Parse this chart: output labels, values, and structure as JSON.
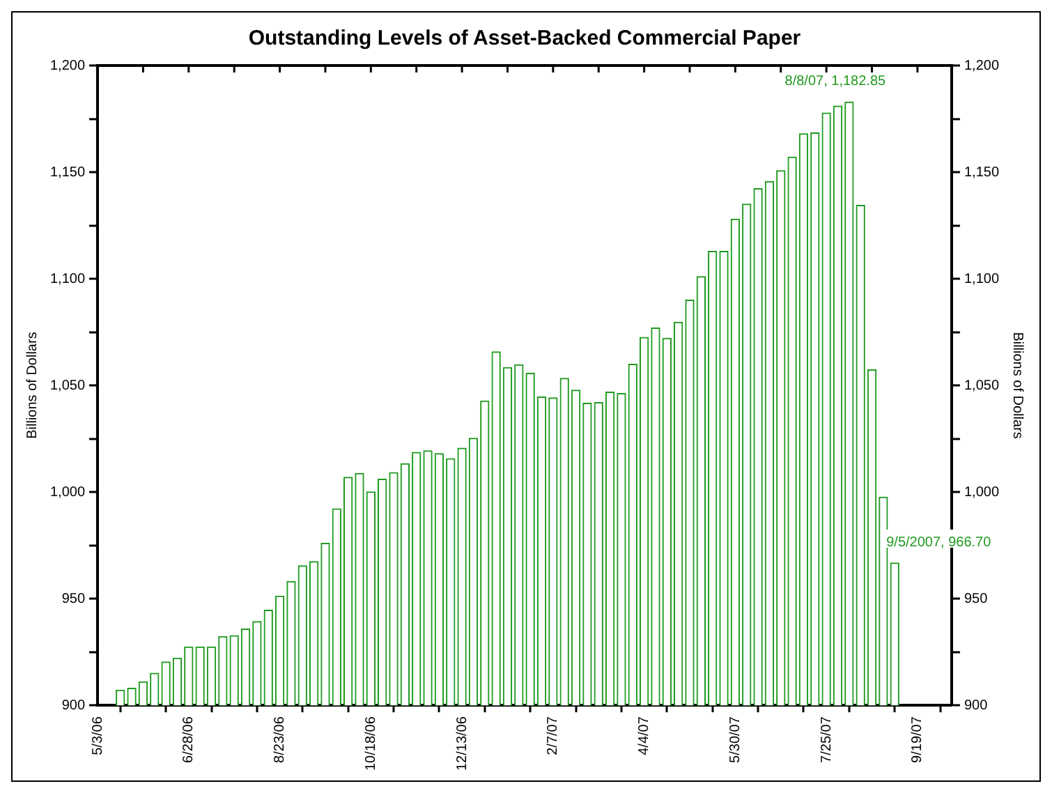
{
  "chart_data": {
    "type": "bar",
    "title": "Outstanding Levels of Asset-Backed Commercial Paper",
    "ylabel": "Billions of Dollars",
    "y2label": "Billions of Dollars",
    "x": [
      "2006-05-17",
      "2006-05-24",
      "2006-05-31",
      "2006-06-07",
      "2006-06-14",
      "2006-06-21",
      "2006-06-28",
      "2006-07-05",
      "2006-07-12",
      "2006-07-19",
      "2006-07-26",
      "2006-08-02",
      "2006-08-09",
      "2006-08-16",
      "2006-08-23",
      "2006-08-30",
      "2006-09-06",
      "2006-09-13",
      "2006-09-20",
      "2006-09-27",
      "2006-10-04",
      "2006-10-11",
      "2006-10-18",
      "2006-10-25",
      "2006-11-01",
      "2006-11-08",
      "2006-11-15",
      "2006-11-22",
      "2006-11-29",
      "2006-12-06",
      "2006-12-13",
      "2006-12-20",
      "2006-12-27",
      "2007-01-03",
      "2007-01-10",
      "2007-01-17",
      "2007-01-24",
      "2007-01-31",
      "2007-02-07",
      "2007-02-14",
      "2007-02-21",
      "2007-02-28",
      "2007-03-07",
      "2007-03-14",
      "2007-03-21",
      "2007-03-28",
      "2007-04-04",
      "2007-04-11",
      "2007-04-18",
      "2007-04-25",
      "2007-05-02",
      "2007-05-09",
      "2007-05-16",
      "2007-05-23",
      "2007-05-30",
      "2007-06-06",
      "2007-06-13",
      "2007-06-20",
      "2007-06-27",
      "2007-07-04",
      "2007-07-11",
      "2007-07-18",
      "2007-07-25",
      "2007-08-01",
      "2007-08-08",
      "2007-08-15",
      "2007-08-22",
      "2007-08-29",
      "2007-09-05"
    ],
    "values": [
      907.1,
      908.0,
      911.0,
      915.0,
      920.3,
      922.1,
      927.4,
      927.4,
      927.4,
      932.3,
      932.7,
      935.8,
      939.3,
      944.6,
      951.2,
      958.1,
      965.4,
      967.4,
      976.0,
      992.1,
      1006.9,
      1008.7,
      1000.1,
      1006.0,
      1009.1,
      1013.3,
      1018.6,
      1019.3,
      1018.0,
      1015.7,
      1020.6,
      1025.2,
      1042.7,
      1065.7,
      1058.4,
      1059.7,
      1055.7,
      1044.6,
      1044.2,
      1053.3,
      1047.8,
      1041.6,
      1042.0,
      1046.9,
      1046.2,
      1059.9,
      1072.5,
      1076.9,
      1072.1,
      1079.6,
      1090.0,
      1101.0,
      1112.9,
      1112.9,
      1128.0,
      1135.0,
      1142.3,
      1145.6,
      1150.7,
      1157.1,
      1168.0,
      1168.4,
      1177.7,
      1181.0,
      1182.85,
      1134.4,
      1057.3,
      997.6,
      966.7
    ],
    "color": "#1f9a1f",
    "xlim": [
      "2006-05-03",
      "2007-10-10"
    ],
    "xticks": [
      {
        "value": "2006-05-03",
        "label": "5/3/06"
      },
      {
        "value": "2006-05-31",
        "label": null
      },
      {
        "value": "2006-06-28",
        "label": "6/28/06"
      },
      {
        "value": "2006-07-26",
        "label": null
      },
      {
        "value": "2006-08-23",
        "label": "8/23/06"
      },
      {
        "value": "2006-09-20",
        "label": null
      },
      {
        "value": "2006-10-18",
        "label": "10/18/06"
      },
      {
        "value": "2006-11-15",
        "label": null
      },
      {
        "value": "2006-12-13",
        "label": "12/13/06"
      },
      {
        "value": "2007-01-10",
        "label": null
      },
      {
        "value": "2007-02-07",
        "label": "2/7/07"
      },
      {
        "value": "2007-03-07",
        "label": null
      },
      {
        "value": "2007-04-04",
        "label": "4/4/07"
      },
      {
        "value": "2007-05-02",
        "label": null
      },
      {
        "value": "2007-05-30",
        "label": "5/30/07"
      },
      {
        "value": "2007-06-27",
        "label": null
      },
      {
        "value": "2007-07-25",
        "label": "7/25/07"
      },
      {
        "value": "2007-08-22",
        "label": null
      },
      {
        "value": "2007-09-19",
        "label": "9/19/07"
      }
    ],
    "ylim": [
      900,
      1200
    ],
    "yticks": [
      900,
      {
        "value": 925,
        "label": null
      },
      950,
      {
        "value": 975,
        "label": null
      },
      {
        "value": 1000,
        "label": "1,000"
      },
      {
        "value": 1025,
        "label": null
      },
      {
        "value": 1050,
        "label": "1,050"
      },
      {
        "value": 1075,
        "label": null
      },
      {
        "value": 1100,
        "label": "1,100"
      },
      {
        "value": 1125,
        "label": null
      },
      {
        "value": 1150,
        "label": "1,150"
      },
      {
        "value": 1175,
        "label": null
      },
      {
        "value": 1200,
        "label": "1,200"
      }
    ],
    "y2lim": [
      900,
      1200
    ],
    "y2ticks": [
      900,
      {
        "value": 925,
        "label": null
      },
      950,
      {
        "value": 975,
        "label": null
      },
      {
        "value": 1000,
        "label": "1,000"
      },
      {
        "value": 1025,
        "label": null
      },
      {
        "value": 1050,
        "label": "1,050"
      },
      {
        "value": 1075,
        "label": null
      },
      {
        "value": 1100,
        "label": "1,100"
      },
      {
        "value": 1125,
        "label": null
      },
      {
        "value": 1150,
        "label": "1,150"
      },
      {
        "value": 1175,
        "label": null
      },
      {
        "value": 1200,
        "label": "1,200"
      }
    ],
    "annotations": [
      {
        "text": "8/8/07, 1,182.85",
        "x": "2007-08-08",
        "y": 1182.85
      },
      {
        "text": "9/5/2007, 966.70",
        "x": "2007-09-05",
        "y": 966.7
      }
    ],
    "grid": false,
    "legend": false
  }
}
